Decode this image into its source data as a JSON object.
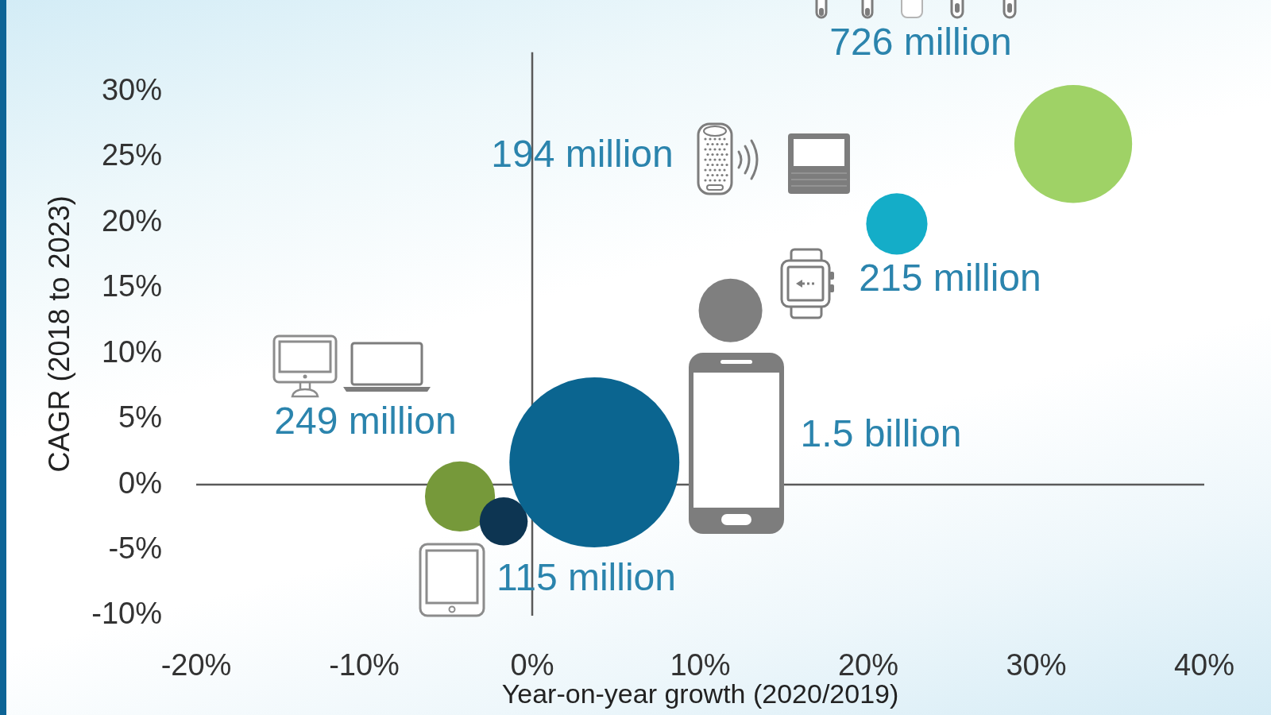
{
  "chart_data": {
    "type": "bubble",
    "xlabel": "Year-on-year growth (2020/2019)",
    "ylabel": "CAGR (2018 to 2023)",
    "x": [
      -4.3,
      -1.7,
      3.7,
      11.8,
      21.7,
      32.2
    ],
    "values": [
      -0.9,
      -2.8,
      1.7,
      13.3,
      19.9,
      26.0
    ],
    "sizes": [
      0.17,
      0.08,
      1,
      0.14,
      0.13,
      0.48
    ],
    "colors": [
      "#76993a",
      "#0d3552",
      "#0b6590",
      "#7f7f7f",
      "#14adc8",
      "#9fd266"
    ],
    "xlim": [
      -20,
      40
    ],
    "ylim": [
      -10,
      33
    ],
    "xticks": [
      {
        "value": -20,
        "label": "-20%"
      },
      {
        "value": -10,
        "label": "-10%"
      },
      {
        "value": 0,
        "label": "0%"
      },
      {
        "value": 10,
        "label": "10%"
      },
      {
        "value": 20,
        "label": "20%"
      },
      {
        "value": 30,
        "label": "30%"
      },
      {
        "value": 40,
        "label": "40%"
      }
    ],
    "yticks": [
      {
        "value": -10,
        "label": "-10%"
      },
      {
        "value": -5,
        "label": "-5%"
      },
      {
        "value": 0,
        "label": "0%"
      },
      {
        "value": 5,
        "label": "5%"
      },
      {
        "value": 10,
        "label": "10%"
      },
      {
        "value": 15,
        "label": "15%"
      },
      {
        "value": 20,
        "label": "20%"
      },
      {
        "value": 25,
        "label": "25%"
      },
      {
        "value": 30,
        "label": "30%"
      }
    ],
    "annotations": [
      "249 million",
      "115 million",
      "1.5 billion",
      "215 million",
      "194 million",
      "726 million"
    ]
  }
}
